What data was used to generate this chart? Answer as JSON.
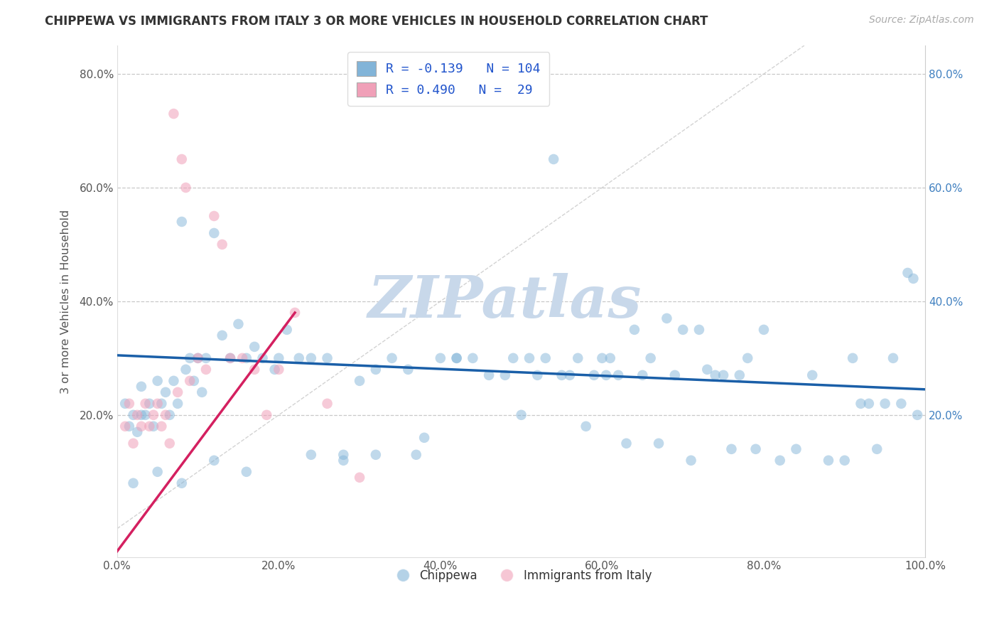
{
  "title": "CHIPPEWA VS IMMIGRANTS FROM ITALY 3 OR MORE VEHICLES IN HOUSEHOLD CORRELATION CHART",
  "source": "Source: ZipAtlas.com",
  "ylabel": "3 or more Vehicles in Household",
  "xlim": [
    0,
    1.0
  ],
  "ylim": [
    -0.05,
    0.85
  ],
  "xticks": [
    0.0,
    0.2,
    0.4,
    0.6,
    0.8,
    1.0
  ],
  "yticks": [
    0.0,
    0.2,
    0.4,
    0.6,
    0.8
  ],
  "xtick_labels": [
    "0.0%",
    "20.0%",
    "40.0%",
    "60.0%",
    "80.0%",
    "100.0%"
  ],
  "ytick_labels": [
    "",
    "20.0%",
    "40.0%",
    "60.0%",
    "80.0%"
  ],
  "watermark": "ZIPatlas",
  "watermark_color": "#c8d8ea",
  "grid_color": "#c8c8c8",
  "blue_color": "#82b4d8",
  "pink_color": "#f0a0b8",
  "blue_line_color": "#1a5fa8",
  "pink_line_color": "#d42060",
  "diag_line_color": "#c8c8c8",
  "blue_R": -0.139,
  "blue_N": 104,
  "pink_R": 0.49,
  "pink_N": 29,
  "blue_line_x0": 0.0,
  "blue_line_y0": 0.305,
  "blue_line_x1": 1.0,
  "blue_line_y1": 0.245,
  "pink_line_x0": 0.0,
  "pink_line_y0": -0.04,
  "pink_line_x1": 0.22,
  "pink_line_y1": 0.38,
  "blue_pts_x": [
    0.01,
    0.015,
    0.02,
    0.025,
    0.03,
    0.03,
    0.035,
    0.04,
    0.045,
    0.05,
    0.055,
    0.06,
    0.065,
    0.07,
    0.075,
    0.08,
    0.085,
    0.09,
    0.095,
    0.1,
    0.105,
    0.11,
    0.12,
    0.13,
    0.14,
    0.15,
    0.16,
    0.17,
    0.18,
    0.195,
    0.21,
    0.225,
    0.24,
    0.26,
    0.28,
    0.3,
    0.32,
    0.34,
    0.36,
    0.38,
    0.4,
    0.42,
    0.44,
    0.46,
    0.48,
    0.49,
    0.5,
    0.51,
    0.52,
    0.53,
    0.54,
    0.55,
    0.56,
    0.57,
    0.58,
    0.59,
    0.6,
    0.605,
    0.61,
    0.62,
    0.63,
    0.64,
    0.65,
    0.66,
    0.67,
    0.68,
    0.69,
    0.7,
    0.71,
    0.72,
    0.73,
    0.74,
    0.75,
    0.76,
    0.77,
    0.78,
    0.79,
    0.8,
    0.82,
    0.84,
    0.86,
    0.88,
    0.9,
    0.91,
    0.92,
    0.93,
    0.94,
    0.95,
    0.96,
    0.97,
    0.978,
    0.985,
    0.99,
    0.02,
    0.05,
    0.08,
    0.12,
    0.16,
    0.2,
    0.24,
    0.28,
    0.32,
    0.37,
    0.42
  ],
  "blue_pts_y": [
    0.22,
    0.18,
    0.2,
    0.17,
    0.25,
    0.2,
    0.2,
    0.22,
    0.18,
    0.26,
    0.22,
    0.24,
    0.2,
    0.26,
    0.22,
    0.54,
    0.28,
    0.3,
    0.26,
    0.3,
    0.24,
    0.3,
    0.52,
    0.34,
    0.3,
    0.36,
    0.3,
    0.32,
    0.3,
    0.28,
    0.35,
    0.3,
    0.3,
    0.3,
    0.12,
    0.26,
    0.28,
    0.3,
    0.28,
    0.16,
    0.3,
    0.3,
    0.3,
    0.27,
    0.27,
    0.3,
    0.2,
    0.3,
    0.27,
    0.3,
    0.65,
    0.27,
    0.27,
    0.3,
    0.18,
    0.27,
    0.3,
    0.27,
    0.3,
    0.27,
    0.15,
    0.35,
    0.27,
    0.3,
    0.15,
    0.37,
    0.27,
    0.35,
    0.12,
    0.35,
    0.28,
    0.27,
    0.27,
    0.14,
    0.27,
    0.3,
    0.14,
    0.35,
    0.12,
    0.14,
    0.27,
    0.12,
    0.12,
    0.3,
    0.22,
    0.22,
    0.14,
    0.22,
    0.3,
    0.22,
    0.45,
    0.44,
    0.2,
    0.08,
    0.1,
    0.08,
    0.12,
    0.1,
    0.3,
    0.13,
    0.13,
    0.13,
    0.13,
    0.3
  ],
  "pink_pts_x": [
    0.01,
    0.015,
    0.02,
    0.025,
    0.03,
    0.035,
    0.04,
    0.045,
    0.05,
    0.055,
    0.06,
    0.065,
    0.07,
    0.075,
    0.08,
    0.085,
    0.09,
    0.1,
    0.11,
    0.12,
    0.13,
    0.14,
    0.155,
    0.17,
    0.185,
    0.2,
    0.22,
    0.26,
    0.3
  ],
  "pink_pts_y": [
    0.18,
    0.22,
    0.15,
    0.2,
    0.18,
    0.22,
    0.18,
    0.2,
    0.22,
    0.18,
    0.2,
    0.15,
    0.73,
    0.24,
    0.65,
    0.6,
    0.26,
    0.3,
    0.28,
    0.55,
    0.5,
    0.3,
    0.3,
    0.28,
    0.2,
    0.28,
    0.38,
    0.22,
    0.09
  ]
}
